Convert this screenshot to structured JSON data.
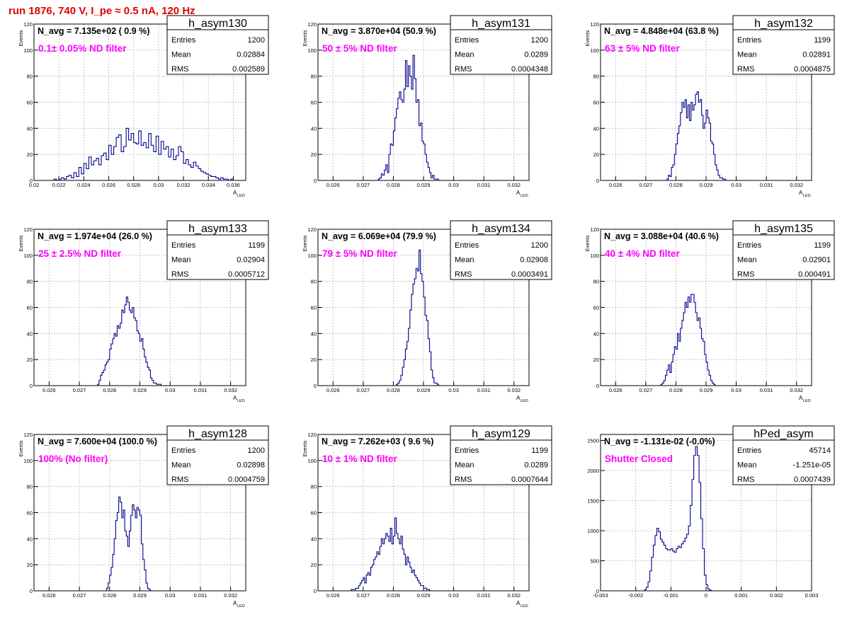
{
  "run_title": "run 1876,   740 V, I_pe ≈ 0.5 nA, 120 Hz",
  "colors": {
    "hist": "#00008b",
    "annotation": "#ff00ff",
    "title": "#e00000",
    "grid": "#b8b8b8"
  },
  "stats_labels": {
    "entries": "Entries",
    "mean": "Mean",
    "rms": "RMS"
  },
  "chart_data": [
    {
      "type": "histogram",
      "name": "h_asym130",
      "header": "N_avg = 7.135e+02 ( 0.9 %)",
      "annotation": "0.1± 0.05% ND filter",
      "stats": {
        "entries": "1200",
        "mean": "0.02884",
        "rms": "0.002589"
      },
      "xlabel": "A",
      "xlabel_sub": "LED",
      "ylabel": "Events",
      "xlim": [
        0.02,
        0.037
      ],
      "ylim": [
        0,
        120
      ],
      "xticks": [
        "0.02",
        "0.022",
        "0.024",
        "0.026",
        "0.028",
        "0.03",
        "0.032",
        "0.034",
        "0.036"
      ],
      "xtick_values": [
        0.02,
        0.022,
        0.024,
        0.026,
        0.028,
        0.03,
        0.032,
        0.034,
        0.036
      ],
      "yticks": [
        "0",
        "20",
        "40",
        "60",
        "80",
        "100",
        "120"
      ],
      "ytick_values": [
        0,
        20,
        40,
        60,
        80,
        100,
        120
      ],
      "bin_start": 0.0216,
      "bin_width": 0.0002,
      "values": [
        1,
        0,
        1,
        2,
        1,
        3,
        4,
        2,
        6,
        3,
        10,
        5,
        13,
        9,
        18,
        12,
        15,
        17,
        12,
        19,
        21,
        16,
        27,
        20,
        26,
        33,
        35,
        22,
        26,
        40,
        31,
        36,
        29,
        28,
        38,
        27,
        29,
        25,
        36,
        27,
        22,
        34,
        20,
        30,
        24,
        26,
        18,
        24,
        16,
        19,
        26,
        22,
        13,
        16,
        12,
        10,
        14,
        11,
        9,
        7,
        6,
        5,
        4,
        3,
        3,
        2,
        1,
        2,
        1,
        1,
        0,
        1
      ]
    },
    {
      "type": "histogram",
      "name": "h_asym131",
      "header": "N_avg = 3.870e+04 (50.9 %)",
      "annotation": "50 ± 5% ND filter",
      "stats": {
        "entries": "1200",
        "mean": "0.0289",
        "rms": "0.0004348"
      },
      "xlabel": "A",
      "xlabel_sub": "LED",
      "ylabel": "Events",
      "xlim": [
        0.0255,
        0.0325
      ],
      "ylim": [
        0,
        120
      ],
      "xticks": [
        "0.026",
        "0.027",
        "0.028",
        "0.029",
        "0.03",
        "0.031",
        "0.032"
      ],
      "xtick_values": [
        0.026,
        0.027,
        0.028,
        0.029,
        0.03,
        0.031,
        0.032
      ],
      "yticks": [
        "0",
        "20",
        "40",
        "60",
        "80",
        "100",
        "120"
      ],
      "ytick_values": [
        0,
        20,
        40,
        60,
        80,
        100,
        120
      ],
      "bin_start": 0.0275,
      "bin_width": 5e-05,
      "values": [
        1,
        2,
        5,
        4,
        8,
        12,
        6,
        20,
        28,
        27,
        38,
        48,
        55,
        63,
        68,
        62,
        60,
        70,
        92,
        72,
        88,
        80,
        70,
        96,
        78,
        60,
        62,
        42,
        44,
        30,
        28,
        20,
        14,
        10,
        6,
        2,
        4,
        1,
        1,
        1
      ]
    },
    {
      "type": "histogram",
      "name": "h_asym132",
      "header": "N_avg = 4.848e+04 (63.8 %)",
      "annotation": "63 ± 5% ND filter",
      "stats": {
        "entries": "1199",
        "mean": "0.02891",
        "rms": "0.0004875"
      },
      "xlabel": "A",
      "xlabel_sub": "LED",
      "ylabel": "Events",
      "xlim": [
        0.0255,
        0.0325
      ],
      "ylim": [
        0,
        120
      ],
      "xticks": [
        "0.026",
        "0.027",
        "0.028",
        "0.029",
        "0.03",
        "0.031",
        "0.032"
      ],
      "xtick_values": [
        0.026,
        0.027,
        0.028,
        0.029,
        0.03,
        0.031,
        0.032
      ],
      "yticks": [
        "0",
        "20",
        "40",
        "60",
        "80",
        "100",
        "120"
      ],
      "ytick_values": [
        0,
        20,
        40,
        60,
        80,
        100,
        120
      ],
      "bin_start": 0.0277,
      "bin_width": 5e-05,
      "values": [
        1,
        4,
        3,
        10,
        12,
        20,
        28,
        36,
        42,
        52,
        60,
        56,
        62,
        48,
        58,
        46,
        60,
        54,
        58,
        66,
        68,
        60,
        62,
        50,
        40,
        44,
        54,
        48,
        44,
        30,
        28,
        20,
        12,
        8,
        4,
        2,
        2,
        1,
        1
      ]
    },
    {
      "type": "histogram",
      "name": "h_asym133",
      "header": "N_avg = 1.974e+04 (26.0 %)",
      "annotation": "25 ± 2.5% ND filter",
      "stats": {
        "entries": "1199",
        "mean": "0.02904",
        "rms": "0.0005712"
      },
      "xlabel": "A",
      "xlabel_sub": "LED",
      "ylabel": "Events",
      "xlim": [
        0.0255,
        0.0325
      ],
      "ylim": [
        0,
        120
      ],
      "xticks": [
        "0.026",
        "0.027",
        "0.028",
        "0.029",
        "0.03",
        "0.031",
        "0.032"
      ],
      "xtick_values": [
        0.026,
        0.027,
        0.028,
        0.029,
        0.03,
        0.031,
        0.032
      ],
      "yticks": [
        "0",
        "20",
        "40",
        "60",
        "80",
        "100",
        "120"
      ],
      "ytick_values": [
        0,
        20,
        40,
        60,
        80,
        100,
        120
      ],
      "bin_start": 0.0276,
      "bin_width": 5e-05,
      "values": [
        1,
        4,
        8,
        10,
        12,
        16,
        18,
        20,
        28,
        32,
        36,
        40,
        38,
        46,
        44,
        48,
        58,
        56,
        62,
        68,
        64,
        58,
        56,
        60,
        52,
        50,
        42,
        40,
        34,
        36,
        28,
        22,
        18,
        14,
        12,
        6,
        4,
        2,
        2,
        1,
        1,
        1
      ]
    },
    {
      "type": "histogram",
      "name": "h_asym134",
      "header": "N_avg = 6.069e+04 (79.9 %)",
      "annotation": "79 ± 5% ND filter",
      "stats": {
        "entries": "1200",
        "mean": "0.02908",
        "rms": "0.0003491"
      },
      "xlabel": "A",
      "xlabel_sub": "LED",
      "ylabel": "Events",
      "xlim": [
        0.0255,
        0.0325
      ],
      "ylim": [
        0,
        120
      ],
      "xticks": [
        "0.026",
        "0.027",
        "0.028",
        "0.029",
        "0.03",
        "0.031",
        "0.032"
      ],
      "xtick_values": [
        0.026,
        0.027,
        0.028,
        0.029,
        0.03,
        0.031,
        0.032
      ],
      "yticks": [
        "0",
        "20",
        "40",
        "60",
        "80",
        "100",
        "120"
      ],
      "ytick_values": [
        0,
        20,
        40,
        60,
        80,
        100,
        120
      ],
      "bin_start": 0.0281,
      "bin_width": 5e-05,
      "values": [
        1,
        2,
        4,
        8,
        14,
        20,
        28,
        34,
        44,
        58,
        70,
        78,
        82,
        90,
        88,
        104,
        86,
        80,
        68,
        54,
        50,
        36,
        26,
        12,
        6,
        2,
        2,
        1
      ]
    },
    {
      "type": "histogram",
      "name": "h_asym135",
      "header": "N_avg = 3.088e+04 (40.6 %)",
      "annotation": "40 ± 4% ND filter",
      "stats": {
        "entries": "1199",
        "mean": "0.02901",
        "rms": "0.000491"
      },
      "xlabel": "A",
      "xlabel_sub": "LED",
      "ylabel": "Events",
      "xlim": [
        0.0255,
        0.0325
      ],
      "ylim": [
        0,
        120
      ],
      "xticks": [
        "0.026",
        "0.027",
        "0.028",
        "0.029",
        "0.03",
        "0.031",
        "0.032"
      ],
      "xtick_values": [
        0.026,
        0.027,
        0.028,
        0.029,
        0.03,
        0.031,
        0.032
      ],
      "yticks": [
        "0",
        "20",
        "40",
        "60",
        "80",
        "100",
        "120"
      ],
      "ytick_values": [
        0,
        20,
        40,
        60,
        80,
        100,
        120
      ],
      "bin_start": 0.0275,
      "bin_width": 5e-05,
      "values": [
        1,
        2,
        4,
        8,
        12,
        16,
        10,
        18,
        24,
        30,
        28,
        40,
        34,
        44,
        50,
        56,
        64,
        60,
        68,
        64,
        70,
        70,
        64,
        56,
        50,
        52,
        44,
        36,
        34,
        24,
        18,
        12,
        8,
        4,
        2,
        1
      ]
    },
    {
      "type": "histogram",
      "name": "h_asym128",
      "header": "N_avg = 7.600e+04 (100.0 %)",
      "annotation": "100% (No filter)",
      "stats": {
        "entries": "1200",
        "mean": "0.02898",
        "rms": "0.0004759"
      },
      "xlabel": "A",
      "xlabel_sub": "LED",
      "ylabel": "Events",
      "xlim": [
        0.0255,
        0.0325
      ],
      "ylim": [
        0,
        120
      ],
      "xticks": [
        "0.026",
        "0.027",
        "0.028",
        "0.029",
        "0.03",
        "0.031",
        "0.032"
      ],
      "xtick_values": [
        0.026,
        0.027,
        0.028,
        0.029,
        0.03,
        0.031,
        0.032
      ],
      "yticks": [
        "0",
        "20",
        "40",
        "60",
        "80",
        "100",
        "120"
      ],
      "ytick_values": [
        0,
        20,
        40,
        60,
        80,
        100,
        120
      ],
      "bin_start": 0.0279,
      "bin_width": 5e-05,
      "values": [
        2,
        6,
        12,
        18,
        28,
        40,
        54,
        60,
        72,
        68,
        56,
        62,
        46,
        42,
        34,
        46,
        58,
        66,
        62,
        56,
        64,
        62,
        58,
        36,
        24,
        16,
        6,
        2,
        1
      ]
    },
    {
      "type": "histogram",
      "name": "h_asym129",
      "header": "N_avg = 7.262e+03 ( 9.6 %)",
      "annotation": "10 ± 1% ND filter",
      "stats": {
        "entries": "1199",
        "mean": "0.0289",
        "rms": "0.0007644"
      },
      "xlabel": "A",
      "xlabel_sub": "LED",
      "ylabel": "Events",
      "xlim": [
        0.0255,
        0.0325
      ],
      "ylim": [
        0,
        120
      ],
      "xticks": [
        "0.026",
        "0.027",
        "0.028",
        "0.029",
        "0.03",
        "0.031",
        "0.032"
      ],
      "xtick_values": [
        0.026,
        0.027,
        0.028,
        0.029,
        0.03,
        0.031,
        0.032
      ],
      "yticks": [
        "0",
        "20",
        "40",
        "60",
        "80",
        "100",
        "120"
      ],
      "ytick_values": [
        0,
        20,
        40,
        60,
        80,
        100,
        120
      ],
      "bin_start": 0.0266,
      "bin_width": 5e-05,
      "values": [
        1,
        1,
        1,
        2,
        2,
        4,
        6,
        8,
        10,
        6,
        12,
        14,
        12,
        18,
        20,
        24,
        26,
        30,
        28,
        34,
        40,
        36,
        40,
        44,
        42,
        38,
        48,
        36,
        42,
        56,
        44,
        40,
        36,
        42,
        32,
        28,
        20,
        26,
        22,
        18,
        14,
        16,
        12,
        10,
        8,
        6,
        4,
        4,
        2,
        2,
        1,
        1
      ]
    },
    {
      "type": "histogram",
      "name": "hPed_asym",
      "header": "N_avg = -1.131e-02 (-0.0%)",
      "annotation": "Shutter Closed",
      "stats": {
        "entries": "45714",
        "mean": "-1.251e-05",
        "rms": "0.0007439"
      },
      "xlabel": "",
      "xlabel_sub": "",
      "ylabel": "",
      "xlim": [
        -0.003,
        0.003
      ],
      "ylim": [
        0,
        2600
      ],
      "xticks": [
        "-0.003",
        "-0.002",
        "-0.001",
        "0",
        "0.001",
        "0.002",
        "0.003"
      ],
      "xtick_values": [
        -0.003,
        -0.002,
        -0.001,
        0,
        0.001,
        0.002,
        0.003
      ],
      "yticks": [
        "0",
        "500",
        "1000",
        "1500",
        "2000",
        "2500"
      ],
      "ytick_values": [
        0,
        500,
        1000,
        1500,
        2000,
        2500
      ],
      "bin_start": -0.00175,
      "bin_width": 5e-05,
      "values": [
        20,
        60,
        150,
        330,
        560,
        760,
        920,
        1040,
        980,
        860,
        810,
        760,
        700,
        680,
        680,
        700,
        660,
        640,
        700,
        740,
        720,
        780,
        820,
        880,
        940,
        1080,
        1420,
        1850,
        2250,
        2400,
        2250,
        1800,
        1200,
        700,
        260,
        100,
        30,
        10
      ]
    }
  ]
}
